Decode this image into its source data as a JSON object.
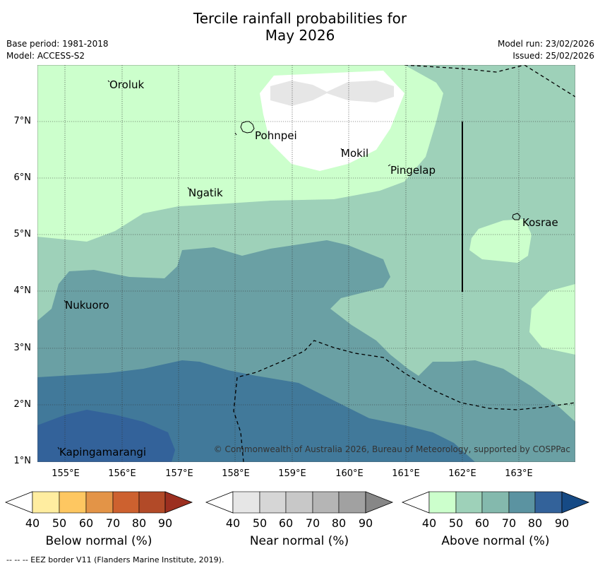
{
  "title_line1": "Tercile rainfall probabilities for",
  "title_line2": "May 2026",
  "meta": {
    "base_period": "Base period: 1981-2018",
    "model": "Model: ACCESS-S2",
    "model_run": "Model run: 23/02/2026",
    "issued": "Issued: 25/02/2026"
  },
  "axes": {
    "lat_labels": [
      "7°N",
      "6°N",
      "5°N",
      "4°N",
      "3°N",
      "2°N",
      "1°N"
    ],
    "lon_labels": [
      "155°E",
      "156°E",
      "157°E",
      "158°E",
      "159°E",
      "160°E",
      "161°E",
      "162°E",
      "163°E"
    ]
  },
  "places": {
    "oroluk": "Oroluk",
    "pohnpei": "Pohnpei",
    "mokil": "Mokil",
    "pingelap": "Pingelap",
    "ngatik": "Ngatik",
    "kosrae": "Kosrae",
    "nukuoro": "Nukuoro",
    "kapingamarangi": "Kapingamarangi"
  },
  "copyright": "© Commonwealth of Australia 2026, Bureau of Meteorology, supported by COSPPac",
  "legend": {
    "ticks": [
      "40",
      "50",
      "60",
      "70",
      "80",
      "90"
    ],
    "below": {
      "label": "Below normal (%)",
      "colors": [
        "#ffeda0",
        "#fec761",
        "#e39447",
        "#cd612f",
        "#b24a28",
        "#9c2f20"
      ]
    },
    "near": {
      "label": "Near normal (%)",
      "colors": [
        "#e6e6e6",
        "#d6d6d6",
        "#c8c8c8",
        "#b5b5b5",
        "#a1a1a1",
        "#878787"
      ]
    },
    "above": {
      "label": "Above normal (%)",
      "colors": [
        "#ccffcc",
        "#9ed1b9",
        "#84b9ad",
        "#5b93a1",
        "#33629a",
        "#164a85"
      ]
    }
  },
  "footer": "--  --  -- EEZ border V11 (Flanders Marine Institute, 2019)."
}
